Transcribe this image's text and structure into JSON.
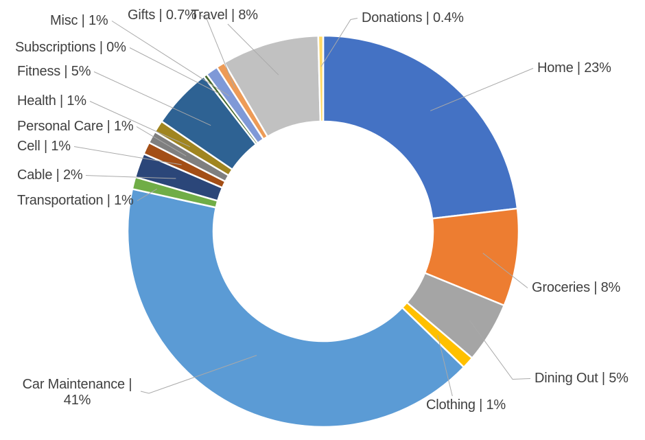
{
  "chart_data": {
    "type": "pie",
    "subtype": "donut",
    "title": "",
    "legend_position": "callout-labels",
    "grid": false,
    "separator": "|",
    "unit": "%",
    "slices": [
      {
        "label": "Home",
        "value": 23,
        "display": "23%",
        "color": "#4472C4"
      },
      {
        "label": "Groceries",
        "value": 8,
        "display": "8%",
        "color": "#ED7D31"
      },
      {
        "label": "Dining Out",
        "value": 5,
        "display": "5%",
        "color": "#A5A5A5"
      },
      {
        "label": "Clothing",
        "value": 1,
        "display": "1%",
        "color": "#FFC000"
      },
      {
        "label": "Car Maintenance",
        "value": 41,
        "display": "41%",
        "color": "#5B9BD5"
      },
      {
        "label": "Transportation",
        "value": 1,
        "display": "1%",
        "color": "#70AD47"
      },
      {
        "label": "Cable",
        "value": 2,
        "display": "2%",
        "color": "#2B4679"
      },
      {
        "label": "Cell",
        "value": 1,
        "display": "1%",
        "color": "#A34E16"
      },
      {
        "label": "Personal Care",
        "value": 1,
        "display": "1%",
        "color": "#7F7F7F"
      },
      {
        "label": "Health",
        "value": 1,
        "display": "1%",
        "color": "#A08520"
      },
      {
        "label": "Fitness",
        "value": 5,
        "display": "5%",
        "color": "#2E6293"
      },
      {
        "label": "Subscriptions",
        "value": 0.3,
        "display": "0%",
        "color": "#44682A"
      },
      {
        "label": "Misc",
        "value": 1,
        "display": "1%",
        "color": "#7F99D7"
      },
      {
        "label": "Gifts",
        "value": 0.7,
        "display": "0.7%",
        "color": "#ED9B57"
      },
      {
        "label": "Travel",
        "value": 8,
        "display": "8%",
        "color": "#C1C1C1"
      },
      {
        "label": "Donations",
        "value": 0.4,
        "display": "0.4%",
        "color": "#FFD966"
      }
    ],
    "colors": {
      "background": "#FFFFFF",
      "slice_border": "#FFFFFF",
      "label_text": "#3F3F3F",
      "leader_line": "#A9A9A9"
    }
  }
}
